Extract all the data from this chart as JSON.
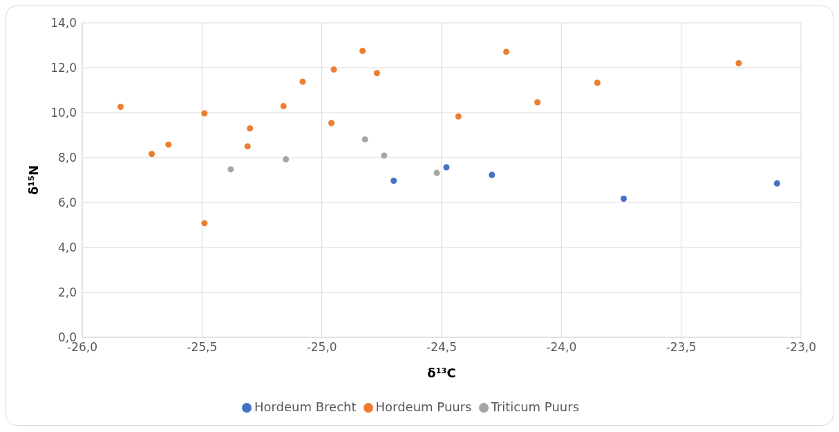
{
  "chart_data": {
    "type": "scatter",
    "xlabel": "δ¹³C",
    "ylabel": "δ¹⁵N",
    "xlim": [
      -26,
      -23
    ],
    "xticks": [
      {
        "value": -26,
        "label": "-26,0"
      },
      {
        "value": -25.5,
        "label": "-25,5"
      },
      {
        "value": -25,
        "label": "-25,0"
      },
      {
        "value": -24.5,
        "label": "-24,5"
      },
      {
        "value": -24,
        "label": "-24,0"
      },
      {
        "value": -23.5,
        "label": "-23,5"
      },
      {
        "value": -23,
        "label": "-23,0"
      }
    ],
    "ylim": [
      0,
      14
    ],
    "yticks": [
      {
        "value": 0,
        "label": "0,0"
      },
      {
        "value": 2,
        "label": "2,0"
      },
      {
        "value": 4,
        "label": "4,0"
      },
      {
        "value": 6,
        "label": "6,0"
      },
      {
        "value": 8,
        "label": "8,0"
      },
      {
        "value": 10,
        "label": "10,0"
      },
      {
        "value": 12,
        "label": "12,0"
      },
      {
        "value": 14,
        "label": "14,0"
      }
    ],
    "grid": true,
    "legend": "bottom",
    "marker": "circle",
    "series": [
      {
        "name": "Hordeum Brecht",
        "color": "#4472c4",
        "x": [
          -24.7,
          -24.48,
          -24.29,
          -23.74,
          -23.1
        ],
        "values": [
          6.97,
          7.57,
          7.23,
          6.17,
          6.85
        ]
      },
      {
        "name": "Hordeum Puurs",
        "color": "#ed7d31",
        "x": [
          -25.84,
          -25.71,
          -25.64,
          -25.49,
          -25.49,
          -25.3,
          -25.31,
          -25.16,
          -25.08,
          -24.95,
          -24.96,
          -24.83,
          -24.77,
          -24.43,
          -24.23,
          -24.1,
          -23.85,
          -23.26
        ],
        "values": [
          10.26,
          8.16,
          8.58,
          9.97,
          5.08,
          9.3,
          8.5,
          10.29,
          11.38,
          11.92,
          9.54,
          12.75,
          11.76,
          9.83,
          12.71,
          10.46,
          11.33,
          12.2
        ]
      },
      {
        "name": "Triticum Puurs",
        "color": "#a5a5a5",
        "x": [
          -25.38,
          -25.15,
          -24.82,
          -24.74,
          -24.52
        ],
        "values": [
          7.48,
          7.92,
          8.81,
          8.09,
          7.32
        ]
      }
    ]
  }
}
